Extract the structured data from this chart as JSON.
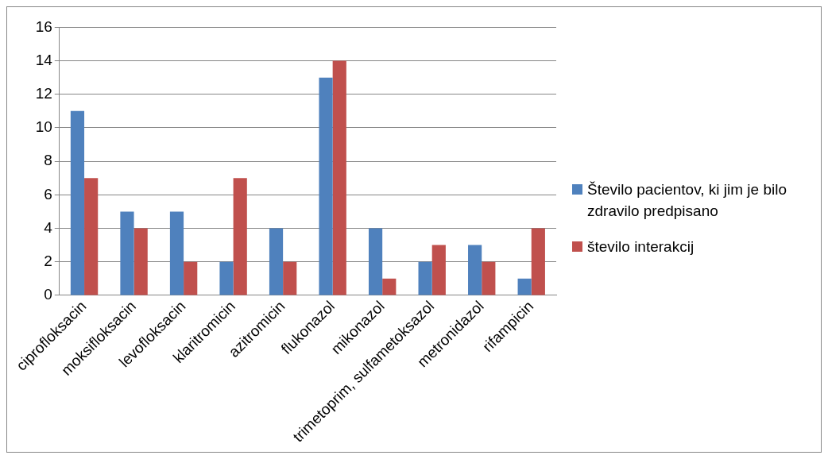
{
  "chart_data": {
    "type": "bar",
    "categories": [
      "ciprofloksacin",
      "moksifloksacin",
      "levofloksacin",
      "klaritromicin",
      "azitromicin",
      "flukonazol",
      "mikonazol",
      "trimetoprim, sulfametoksazol",
      "metronidazol",
      "rifampicin"
    ],
    "series": [
      {
        "name": "Število pacientov, ki jim je bilo zdravilo predpisano",
        "color": "#4f81bd",
        "values": [
          11,
          5,
          5,
          2,
          4,
          13,
          4,
          2,
          3,
          1
        ]
      },
      {
        "name": "število interakcij",
        "color": "#c0504d",
        "values": [
          7,
          4,
          2,
          7,
          2,
          14,
          1,
          3,
          2,
          4
        ]
      }
    ],
    "ylim": [
      0,
      16
    ],
    "yticks": [
      0,
      2,
      4,
      6,
      8,
      10,
      12,
      14,
      16
    ],
    "grid": "y",
    "legend": "right"
  }
}
